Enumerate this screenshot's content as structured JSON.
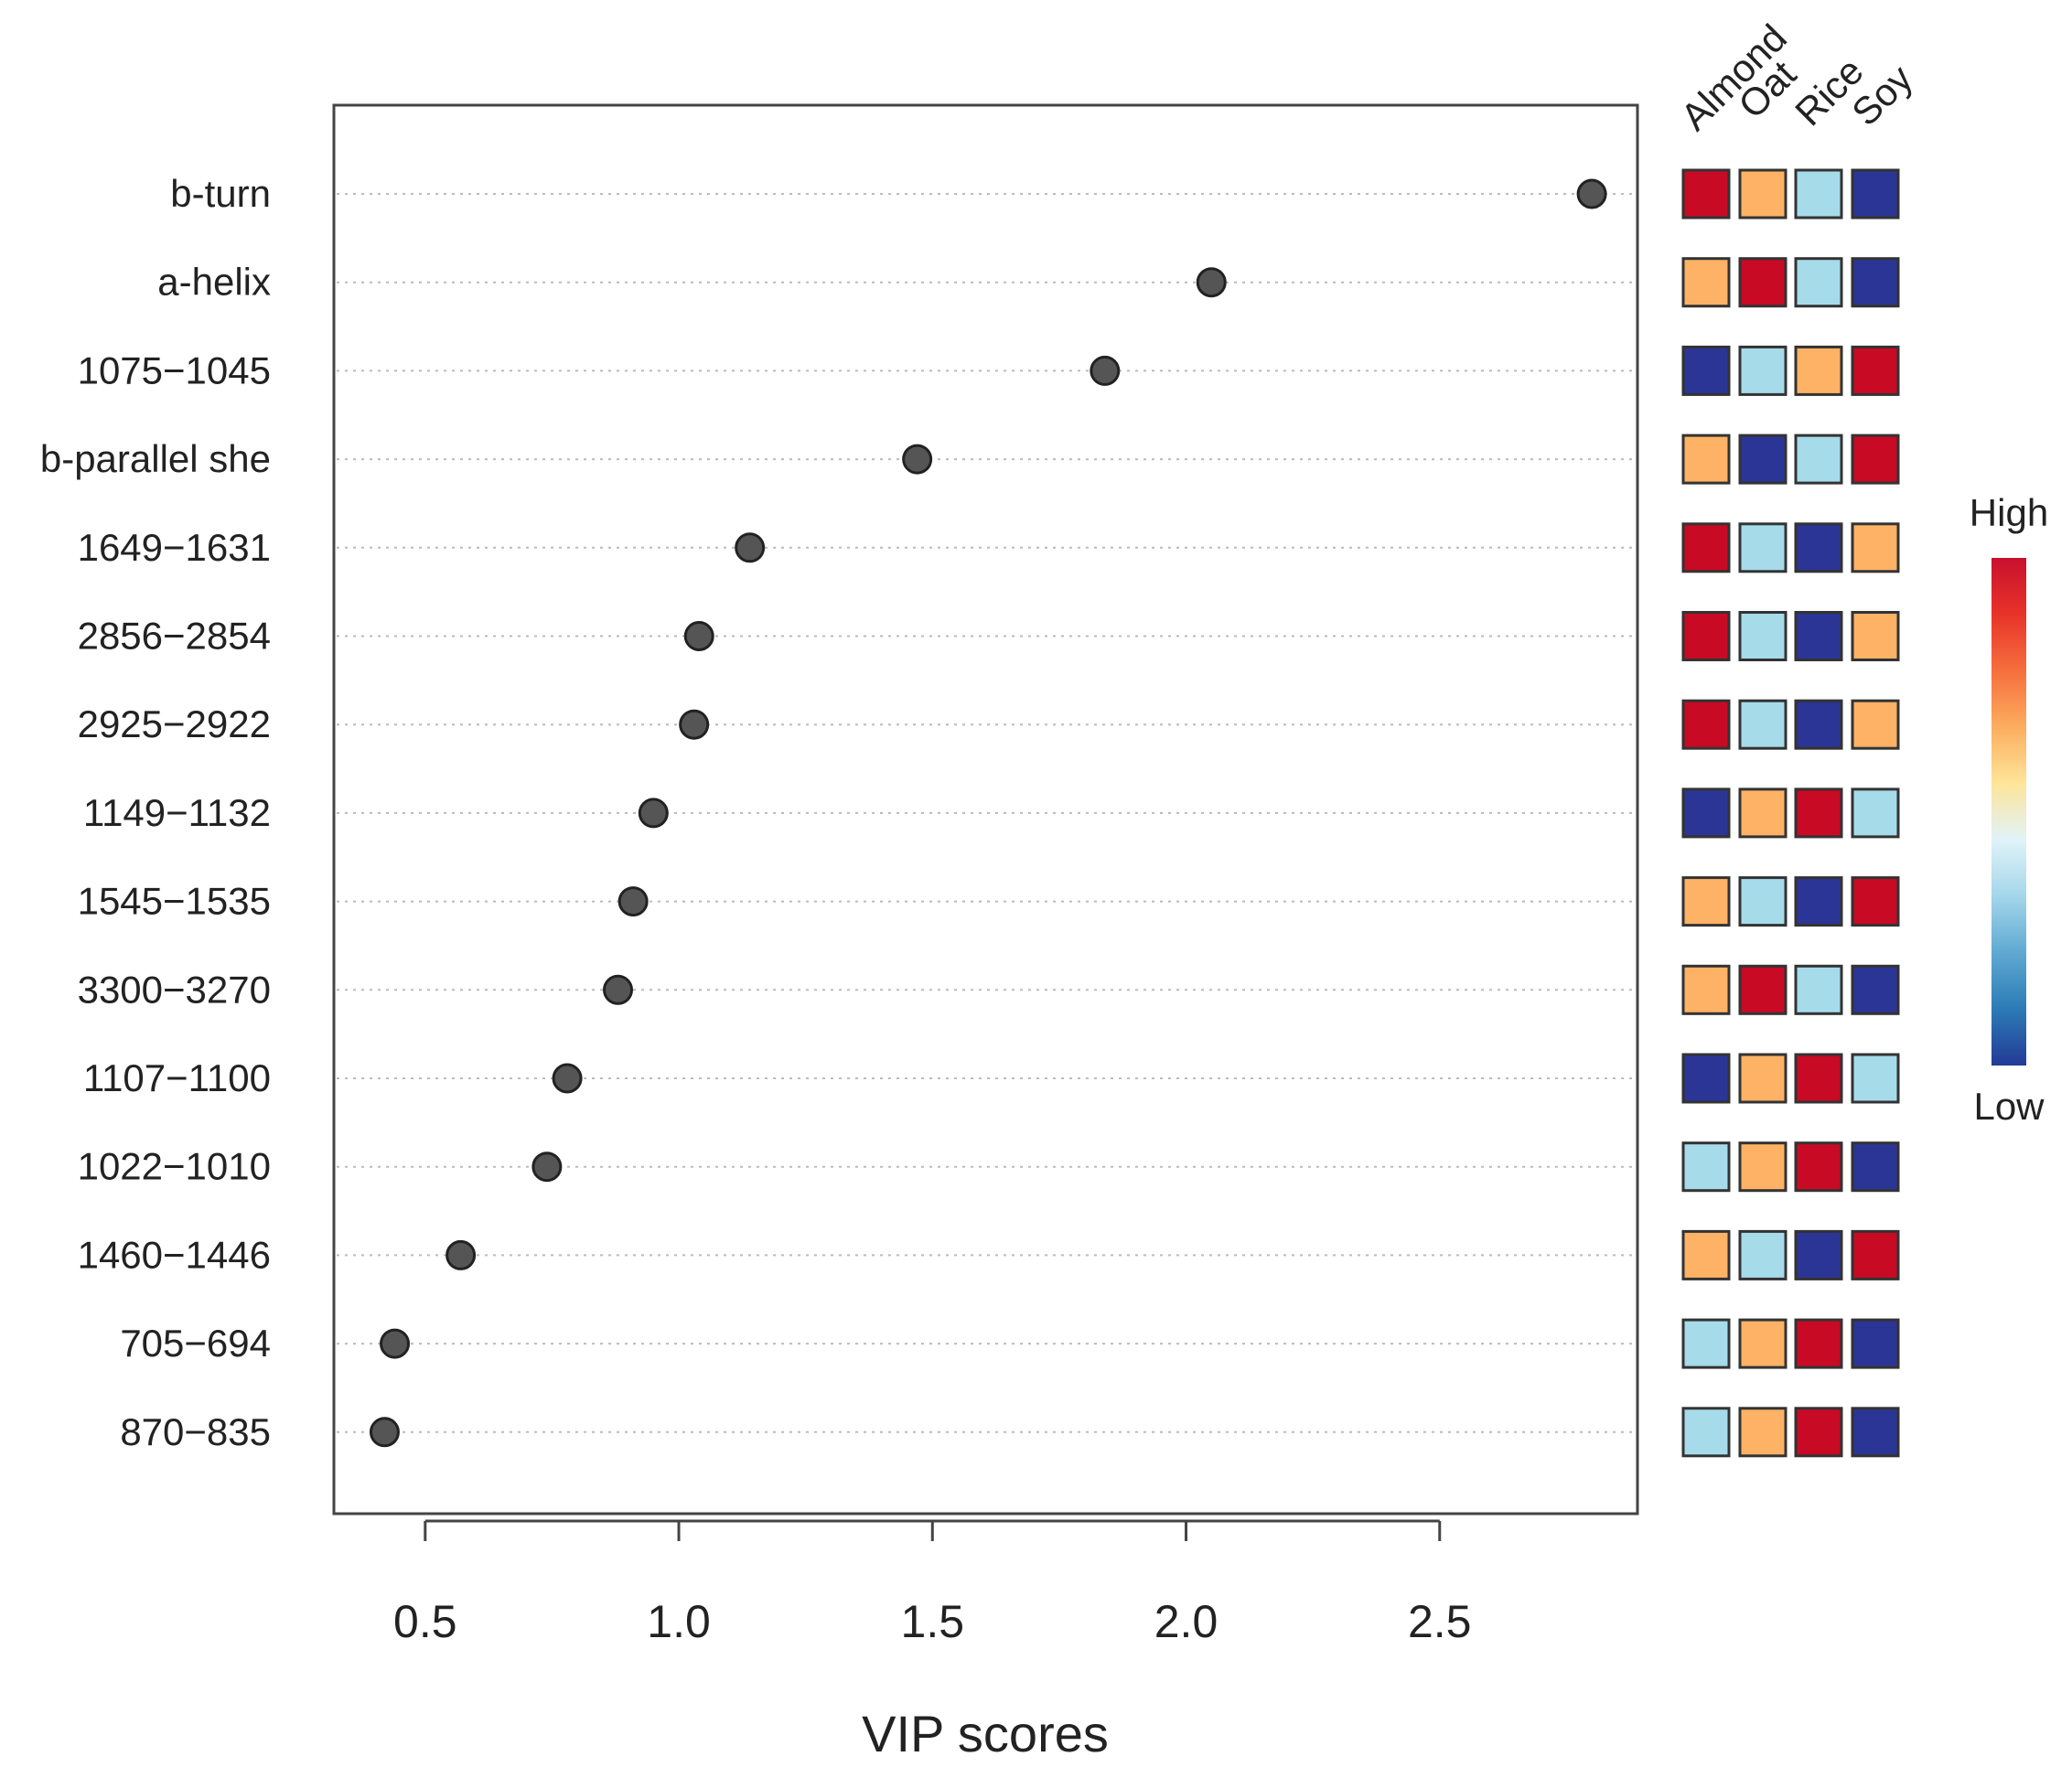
{
  "chart_data": {
    "type": "scatter",
    "subtype": "dot-plot",
    "title": "",
    "xlabel": "VIP scores",
    "ylabel": "",
    "xlim": [
      0.32,
      2.89
    ],
    "xticks": [
      0.5,
      1.0,
      1.5,
      2.0,
      2.5
    ],
    "xtick_labels": [
      "0.5",
      "1.0",
      "1.5",
      "2.0",
      "2.5"
    ],
    "categories": [
      "b-turn",
      "a-helix",
      "1075−1045",
      "b-parallel she",
      "1649−1631",
      "2856−2854",
      "2925−2922",
      "1149−1132",
      "1545−1535",
      "3300−3270",
      "1107−1100",
      "1022−1010",
      "1460−1446",
      "705−694",
      "870−835"
    ],
    "values": [
      2.8,
      2.05,
      1.84,
      1.47,
      1.14,
      1.04,
      1.03,
      0.95,
      0.91,
      0.88,
      0.78,
      0.74,
      0.57,
      0.44,
      0.42
    ],
    "grid": "horizontal dotted",
    "point_color": "#555555",
    "heatmap": {
      "columns": [
        "Almond",
        "Oat",
        "Rice",
        "Soy"
      ],
      "levels": [
        [
          4,
          3,
          2,
          1
        ],
        [
          3,
          4,
          2,
          1
        ],
        [
          1,
          2,
          3,
          4
        ],
        [
          3,
          1,
          2,
          4
        ],
        [
          4,
          2,
          1,
          3
        ],
        [
          4,
          2,
          1,
          3
        ],
        [
          4,
          2,
          1,
          3
        ],
        [
          1,
          3,
          4,
          2
        ],
        [
          3,
          2,
          1,
          4
        ],
        [
          3,
          4,
          2,
          1
        ],
        [
          1,
          3,
          4,
          2
        ],
        [
          2,
          3,
          4,
          1
        ],
        [
          3,
          2,
          1,
          4
        ],
        [
          2,
          3,
          4,
          1
        ],
        [
          2,
          3,
          4,
          1
        ]
      ],
      "level_colors": {
        "1": "#2b3595",
        "2": "#a6dbea",
        "3": "#fdb265",
        "4": "#c80a24"
      }
    },
    "legend": {
      "high_label": "High",
      "low_label": "Low",
      "gradient": [
        "#c8102e",
        "#e8332a",
        "#f66f3d",
        "#fcad5f",
        "#fee59a",
        "#e0f3f8",
        "#a4d6ea",
        "#5fa9d2",
        "#2c7bb6",
        "#233a96"
      ],
      "placement": "right"
    }
  }
}
